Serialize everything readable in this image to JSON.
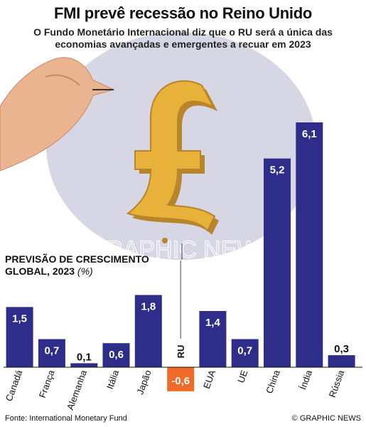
{
  "header": {
    "title": "FMI prevê recessão no Reino Unido",
    "subtitle_line1": "O Fundo Monetário Internacional diz que o RU será a única das",
    "subtitle_line2": "economias avançadas e emergentes a recuar em 2023"
  },
  "chart_label": {
    "line1": "PREVISÃO DE CRESCIMENTO",
    "line2": "GLOBAL, 2023",
    "unit": "(%)"
  },
  "highlight_label": "RU",
  "watermark": "GRAPHIC NEWS",
  "footer": {
    "source": "Fonte: International Monetary Fund",
    "credit": "© GRAPHIC NEWS"
  },
  "colors": {
    "bar": "#2e2e8a",
    "negative_bar": "#f06a2a",
    "label_text": "#ffffff",
    "pound_gold": "#e8b23a",
    "pound_shadow": "#b9852a",
    "skin": "#e9b48f",
    "skin_shadow": "#c98a68",
    "halftone_bg": "#d6d6e4"
  },
  "chart_data": {
    "type": "bar",
    "categories": [
      "Canadá",
      "França",
      "Alemanha",
      "Itália",
      "Japão",
      "RU",
      "EUA",
      "UE",
      "China",
      "Índia",
      "Rússia"
    ],
    "values": [
      1.5,
      0.7,
      0.1,
      0.6,
      1.8,
      -0.6,
      1.4,
      0.7,
      5.2,
      6.1,
      0.3
    ],
    "value_labels": [
      "1,5",
      "0,7",
      "0,1",
      "0,6",
      "1,8",
      "-0,6",
      "1,4",
      "0,7",
      "5,2",
      "6,1",
      "0,3"
    ],
    "title": "PREVISÃO DE CRESCIMENTO GLOBAL, 2023",
    "ylabel": "(%)",
    "ylim": [
      -0.6,
      6.1
    ],
    "grid": false,
    "legend": "none"
  }
}
